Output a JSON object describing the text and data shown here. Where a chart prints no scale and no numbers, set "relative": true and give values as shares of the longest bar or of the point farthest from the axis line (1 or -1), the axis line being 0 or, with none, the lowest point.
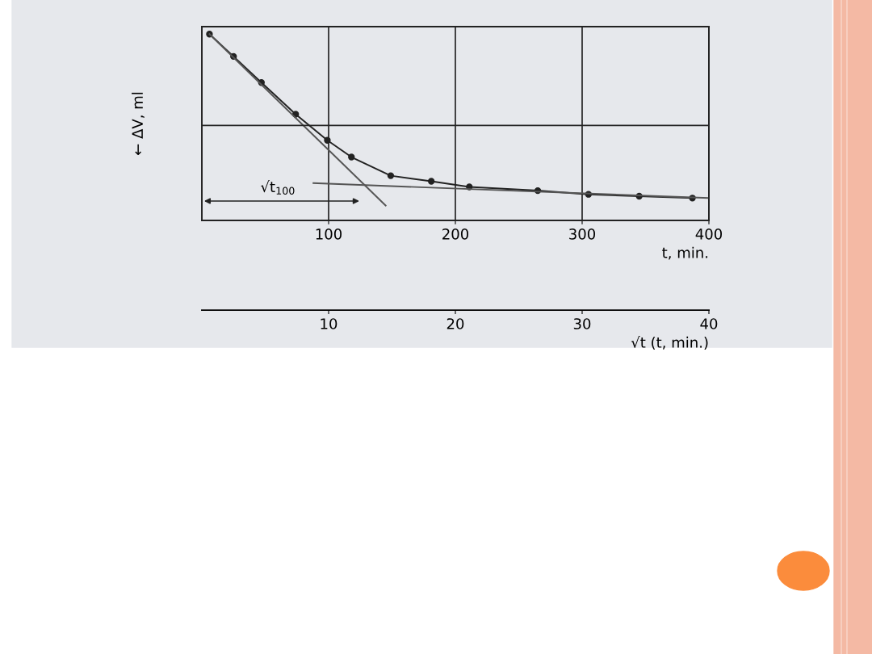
{
  "chart_data": {
    "type": "line",
    "relative": true,
    "xlabel": "t, min.",
    "ylabel": "← ΔV, ml",
    "x2label": "√t (t, min.)",
    "xlim": [
      0,
      400
    ],
    "xticks": [
      100,
      200,
      300,
      400
    ],
    "x2lim": [
      0,
      40
    ],
    "x2ticks": [
      10,
      20,
      30,
      40
    ],
    "grid": "x",
    "marker": "circle",
    "line_style": "solid",
    "series": [
      {
        "color": "#222222",
        "x": [
          6,
          25,
          47,
          74,
          99,
          118,
          149,
          181,
          211,
          265,
          305,
          345,
          387
        ],
        "values": [
          1.0,
          0.88,
          0.74,
          0.57,
          0.43,
          0.34,
          0.24,
          0.21,
          0.18,
          0.16,
          0.14,
          0.13,
          0.12
        ]
      },
      {
        "type": "line",
        "marker": "none",
        "color": "#555555",
        "x": [
          6,
          145
        ],
        "values": [
          1.0,
          0.08
        ]
      },
      {
        "type": "line",
        "marker": "none",
        "color": "#555555",
        "x": [
          88,
          400
        ],
        "values": [
          0.2,
          0.12
        ]
      }
    ],
    "ref_lines": [
      {
        "axis": "y",
        "value": 0.51,
        "color": "#222222"
      }
    ],
    "annotations": [
      "√t$_{100}$"
    ]
  }
}
